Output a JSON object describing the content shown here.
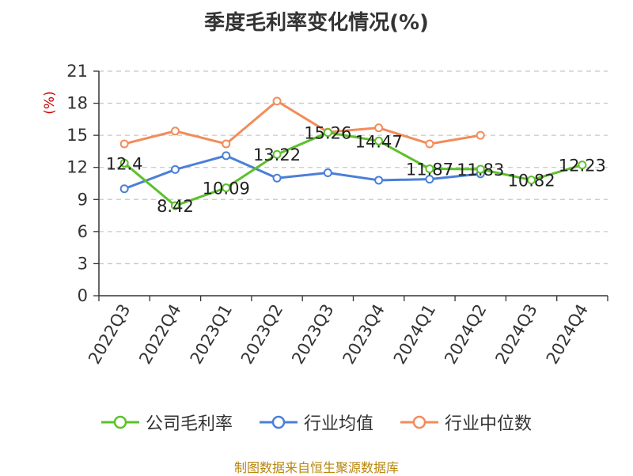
{
  "chart_data": {
    "type": "line",
    "title": "季度毛利率变化情况(%)",
    "ylabel": "(%)",
    "ylim": [
      0,
      21
    ],
    "yticks": [
      0,
      3,
      6,
      9,
      12,
      15,
      18,
      21
    ],
    "grid": true,
    "legend_position": "bottom",
    "categories": [
      "2022Q3",
      "2022Q4",
      "2023Q1",
      "2023Q2",
      "2023Q3",
      "2023Q4",
      "2024Q1",
      "2024Q2",
      "2024Q3",
      "2024Q4"
    ],
    "series": [
      {
        "name": "公司毛利率",
        "color": "#5cc12a",
        "values": [
          12.4,
          8.42,
          10.09,
          13.22,
          15.26,
          14.47,
          11.87,
          11.83,
          10.82,
          12.23
        ],
        "labels": [
          "12.4",
          "8.42",
          "10.09",
          "13.22",
          "15.26",
          "14.47",
          "11.87",
          "11.83",
          "10.82",
          "12.23"
        ]
      },
      {
        "name": "行业均值",
        "color": "#4a7fd8",
        "values": [
          10.0,
          11.8,
          13.1,
          11.0,
          11.5,
          10.8,
          10.9,
          11.4,
          null,
          null
        ]
      },
      {
        "name": "行业中位数",
        "color": "#f28c5a",
        "values": [
          14.2,
          15.4,
          14.2,
          18.2,
          15.3,
          15.7,
          14.2,
          15.0,
          null,
          null
        ]
      }
    ]
  },
  "source": "制图数据来自恒生聚源数据库"
}
